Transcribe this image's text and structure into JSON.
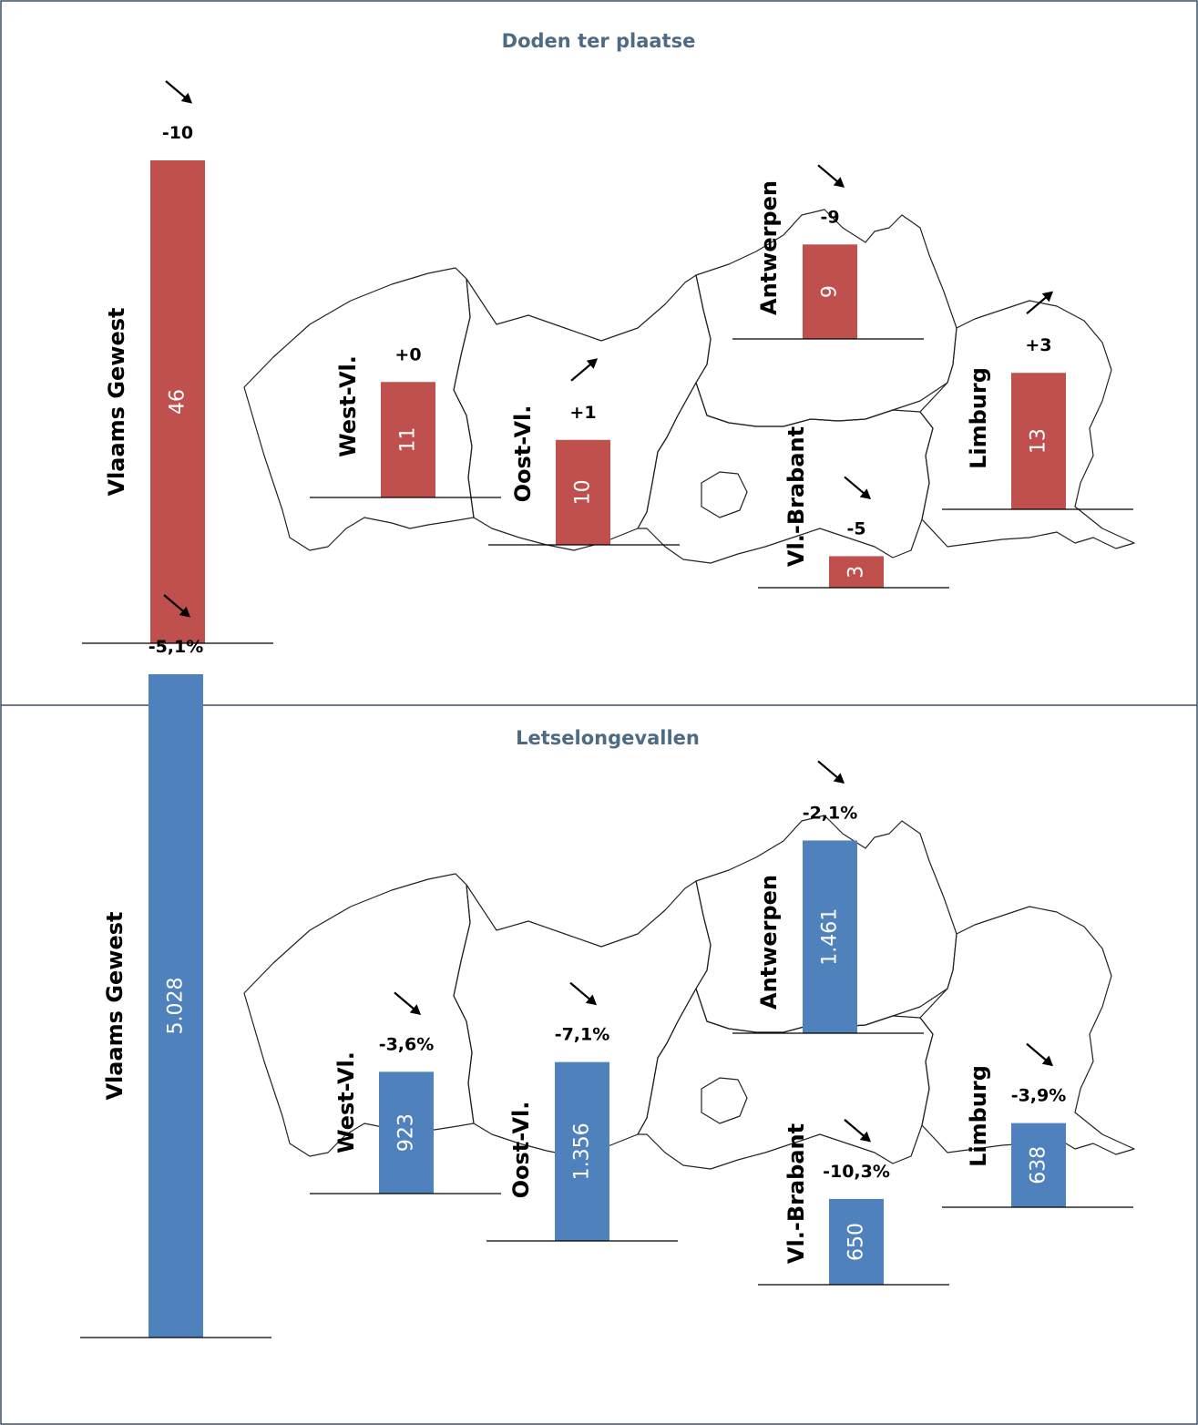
{
  "colors": {
    "deaths": "#c0504d",
    "injury": "#4f81bd",
    "title": "#4f6b84",
    "frame": "#3b4f63"
  },
  "chart_data": [
    {
      "type": "bar",
      "title": "Doden ter plaatse",
      "regions": [
        {
          "name": "Vlaams Gewest",
          "value": 46,
          "value_label": "46",
          "change": "-10",
          "trend": "down"
        },
        {
          "name": "West-Vl.",
          "value": 11,
          "value_label": "11",
          "change": "+0",
          "trend": "none"
        },
        {
          "name": "Oost-Vl.",
          "value": 10,
          "value_label": "10",
          "change": "+1",
          "trend": "up"
        },
        {
          "name": "Antwerpen",
          "value": 9,
          "value_label": "9",
          "change": "-9",
          "trend": "down"
        },
        {
          "name": "Vl.-Brabant",
          "value": 3,
          "value_label": "3",
          "change": "-5",
          "trend": "down"
        },
        {
          "name": "Limburg",
          "value": 13,
          "value_label": "13",
          "change": "+3",
          "trend": "up"
        }
      ]
    },
    {
      "type": "bar",
      "title": "Letselongevallen",
      "regions": [
        {
          "name": "Vlaams Gewest",
          "value": 5028,
          "value_label": "5.028",
          "change": "-5,1%",
          "trend": "down"
        },
        {
          "name": "West-Vl.",
          "value": 923,
          "value_label": "923",
          "change": "-3,6%",
          "trend": "down"
        },
        {
          "name": "Oost-Vl.",
          "value": 1356,
          "value_label": "1.356",
          "change": "-7,1%",
          "trend": "down"
        },
        {
          "name": "Antwerpen",
          "value": 1461,
          "value_label": "1.461",
          "change": "-2,1%",
          "trend": "down"
        },
        {
          "name": "Vl.-Brabant",
          "value": 650,
          "value_label": "650",
          "change": "-10,3%",
          "trend": "down"
        },
        {
          "name": "Limburg",
          "value": 638,
          "value_label": "638",
          "change": "-3,9%",
          "trend": "down"
        }
      ]
    }
  ]
}
